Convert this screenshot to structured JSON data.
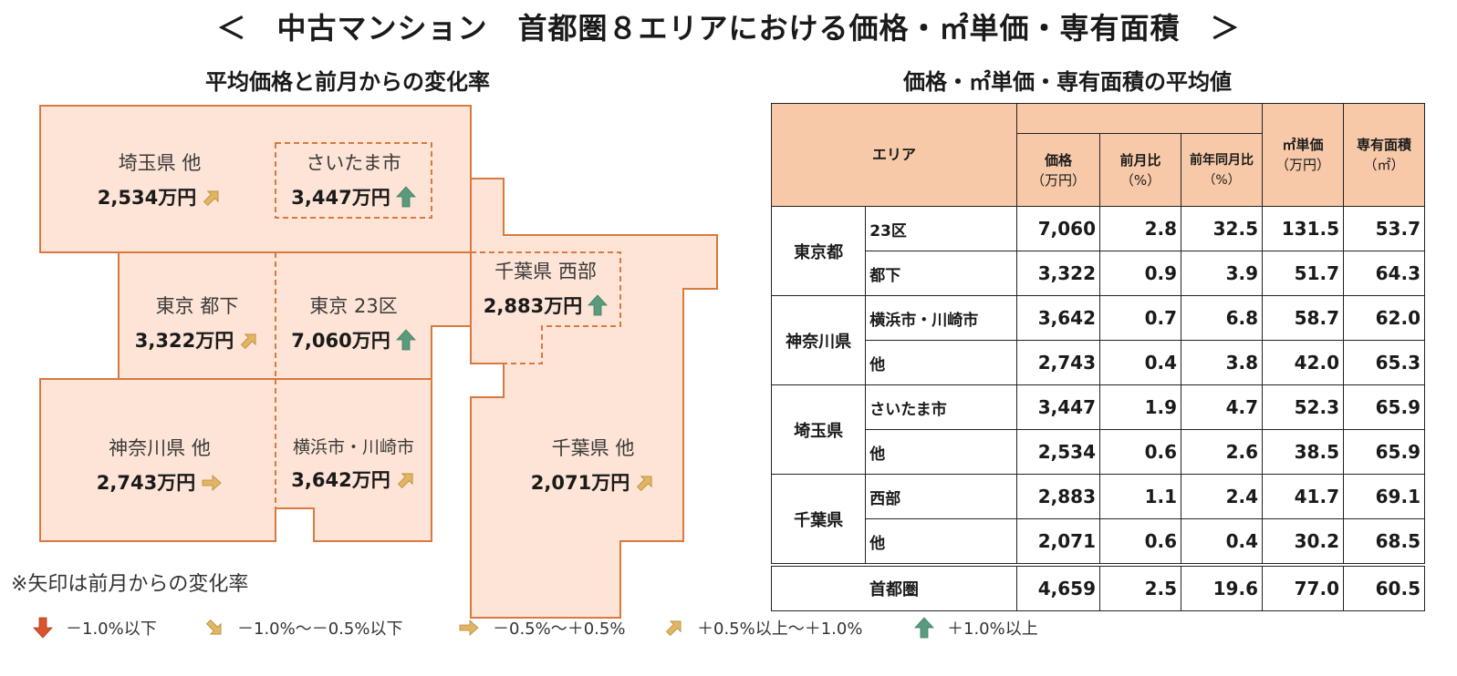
{
  "title": "＜　中古マンション　首都圏８エリアにおける価格・㎡単価・専有面積　＞",
  "map": {
    "subtitle": "平均価格と前月からの変化率",
    "regions": [
      {
        "name": "埼玉県 他",
        "price": "2,534万円",
        "arrow": "up-right"
      },
      {
        "name": "さいたま市",
        "price": "3,447万円",
        "arrow": "up"
      },
      {
        "name": "東京 都下",
        "price": "3,322万円",
        "arrow": "up-right"
      },
      {
        "name": "東京 23区",
        "price": "7,060万円",
        "arrow": "up"
      },
      {
        "name": "千葉県 西部",
        "price": "2,883万円",
        "arrow": "up"
      },
      {
        "name": "神奈川県 他",
        "price": "2,743万円",
        "arrow": "right"
      },
      {
        "name": "横浜市・川崎市",
        "price": "3,642万円",
        "arrow": "up-right"
      },
      {
        "name": "千葉県 他",
        "price": "2,071万円",
        "arrow": "up-right"
      }
    ],
    "note": "※矢印は前月からの変化率"
  },
  "legend": [
    {
      "label": "－1.0%以下",
      "arrow": "down",
      "color": "#d9542b"
    },
    {
      "label": "－1.0%～－0.5%以下",
      "arrow": "down-right",
      "color": "#e2b563"
    },
    {
      "label": "－0.5%～＋0.5%",
      "arrow": "right",
      "color": "#e2b563"
    },
    {
      "label": "＋0.5%以上～＋1.0%",
      "arrow": "up-right",
      "color": "#e2b563"
    },
    {
      "label": "＋1.0%以上",
      "arrow": "up",
      "color": "#5a9a7e"
    }
  ],
  "table": {
    "subtitle": "価格・㎡単価・専有面積の平均値",
    "headers": {
      "area": "エリア",
      "price": [
        "価格",
        "（万円）"
      ],
      "mom": [
        "前月比",
        "（%）"
      ],
      "yoy": [
        "前年同月比",
        "（%）"
      ],
      "unit": [
        "㎡単価",
        "（万円）"
      ],
      "size": [
        "専有面積",
        "（㎡）"
      ]
    },
    "groups": [
      {
        "pref": "東京都",
        "rows": [
          {
            "area": "23区",
            "price": "7,060",
            "mom": "2.8",
            "yoy": "32.5",
            "unit": "131.5",
            "size": "53.7"
          },
          {
            "area": "都下",
            "price": "3,322",
            "mom": "0.9",
            "yoy": "3.9",
            "unit": "51.7",
            "size": "64.3"
          }
        ]
      },
      {
        "pref": "神奈川県",
        "rows": [
          {
            "area": "横浜市・川崎市",
            "price": "3,642",
            "mom": "0.7",
            "yoy": "6.8",
            "unit": "58.7",
            "size": "62.0"
          },
          {
            "area": "他",
            "price": "2,743",
            "mom": "0.4",
            "yoy": "3.8",
            "unit": "42.0",
            "size": "65.3"
          }
        ]
      },
      {
        "pref": "埼玉県",
        "rows": [
          {
            "area": "さいたま市",
            "price": "3,447",
            "mom": "1.9",
            "yoy": "4.7",
            "unit": "52.3",
            "size": "65.9"
          },
          {
            "area": "他",
            "price": "2,534",
            "mom": "0.6",
            "yoy": "2.6",
            "unit": "38.5",
            "size": "65.9"
          }
        ]
      },
      {
        "pref": "千葉県",
        "rows": [
          {
            "area": "西部",
            "price": "2,883",
            "mom": "1.1",
            "yoy": "2.4",
            "unit": "41.7",
            "size": "69.1"
          },
          {
            "area": "他",
            "price": "2,071",
            "mom": "0.6",
            "yoy": "0.4",
            "unit": "30.2",
            "size": "68.5"
          }
        ]
      }
    ],
    "total": {
      "area": "首都圏",
      "price": "4,659",
      "mom": "2.5",
      "yoy": "19.6",
      "unit": "77.0",
      "size": "60.5"
    }
  },
  "colors": {
    "fill": "#fde4d6",
    "stroke": "#d9793f",
    "header": "#f7c9a9",
    "up_green": "#5a9a7e",
    "gold": "#e2b563",
    "down_red": "#d9542b"
  }
}
